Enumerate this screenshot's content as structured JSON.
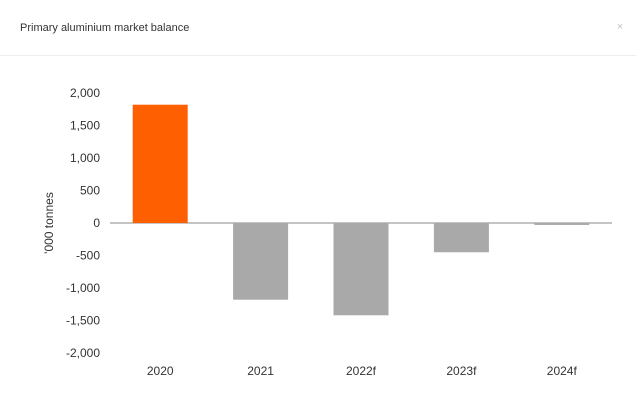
{
  "panel": {
    "title": "Primary aluminium market balance",
    "close_icon": "×"
  },
  "colors": {
    "highlight": "#fe5f00",
    "bar": "#a9a9a9",
    "axis": "#888888",
    "text": "#333333"
  },
  "chart_data": {
    "type": "bar",
    "title": "Primary aluminium market balance",
    "xlabel": "",
    "ylabel": "'000 tonnes",
    "categories": [
      "2020",
      "2021",
      "2022f",
      "2023f",
      "2024f"
    ],
    "values": [
      1820,
      -1180,
      -1420,
      -450,
      -30
    ],
    "highlight_index": 0,
    "ylim": [
      -2000,
      2000
    ],
    "yticks": [
      2000,
      1500,
      1000,
      500,
      0,
      -500,
      -1000,
      -1500,
      -2000
    ],
    "ytick_labels": [
      "2,000",
      "1,500",
      "1,000",
      "500",
      "0",
      "-500",
      "-1,000",
      "-1,500",
      "-2,000"
    ],
    "grid": false,
    "legend": "none"
  }
}
